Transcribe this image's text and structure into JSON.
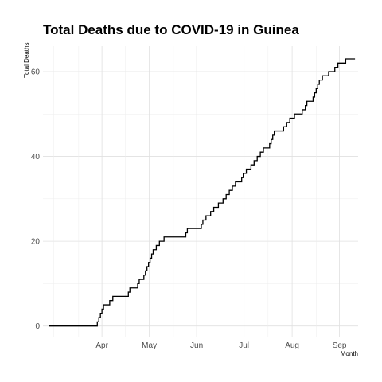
{
  "chart_data": {
    "type": "line",
    "title": "Total Deaths due to COVID-19 in Guinea",
    "xlabel": "Month",
    "ylabel": "Total Deaths",
    "x_ticks": [
      "Apr",
      "May",
      "Jun",
      "Jul",
      "Aug",
      "Sep"
    ],
    "y_ticks": [
      0,
      20,
      40,
      60
    ],
    "ylim": [
      -2.5,
      66
    ],
    "xlim": [
      "2020-03-09",
      "2020-09-28"
    ],
    "grid": true,
    "legend": "none",
    "line_color": "#000000",
    "series": [
      {
        "x": [
          "2020-03-13",
          "2020-04-12",
          "2020-04-13",
          "2020-04-14",
          "2020-04-15",
          "2020-04-16",
          "2020-04-17",
          "2020-04-19",
          "2020-04-21",
          "2020-04-22",
          "2020-04-23",
          "2020-05-02",
          "2020-05-03",
          "2020-05-04",
          "2020-05-09",
          "2020-05-10",
          "2020-05-11",
          "2020-05-12",
          "2020-05-13",
          "2020-05-14",
          "2020-05-15",
          "2020-05-16",
          "2020-05-17",
          "2020-05-18",
          "2020-05-19",
          "2020-05-21",
          "2020-05-22",
          "2020-05-23",
          "2020-05-24",
          "2020-05-25",
          "2020-05-26",
          "2020-06-09",
          "2020-06-10",
          "2020-06-11",
          "2020-06-13",
          "2020-06-15",
          "2020-06-17",
          "2020-06-19",
          "2020-06-20",
          "2020-06-22",
          "2020-06-23",
          "2020-06-25",
          "2020-06-27",
          "2020-06-30",
          "2020-07-03",
          "2020-07-05",
          "2020-07-07",
          "2020-07-09",
          "2020-07-11",
          "2020-07-13",
          "2020-07-15",
          "2020-07-16",
          "2020-07-18",
          "2020-07-20",
          "2020-07-21",
          "2020-07-23",
          "2020-07-25",
          "2020-07-27",
          "2020-07-29",
          "2020-08-02",
          "2020-08-03",
          "2020-08-04",
          "2020-08-05",
          "2020-08-09",
          "2020-08-11",
          "2020-08-13",
          "2020-08-15",
          "2020-08-17",
          "2020-08-18",
          "2020-08-19",
          "2020-08-20",
          "2020-08-21",
          "2020-08-23",
          "2020-08-25",
          "2020-08-26",
          "2020-08-28",
          "2020-08-30",
          "2020-08-31",
          "2020-09-01",
          "2020-09-02",
          "2020-09-03",
          "2020-09-04",
          "2020-09-05",
          "2020-09-06",
          "2020-09-09",
          "2020-09-13",
          "2020-09-15",
          "2020-09-19",
          "2020-09-20",
          "2020-09-26"
        ],
        "y": [
          0,
          0,
          1,
          2,
          3,
          4,
          5,
          5,
          6,
          6,
          7,
          7,
          8,
          9,
          10,
          11,
          11,
          11,
          12,
          13,
          14,
          15,
          16,
          17,
          18,
          19,
          19,
          20,
          20,
          20,
          21,
          22,
          23,
          23,
          23,
          23,
          23,
          24,
          25,
          26,
          26,
          27,
          28,
          29,
          30,
          31,
          32,
          33,
          34,
          34,
          35,
          36,
          37,
          37,
          38,
          39,
          40,
          41,
          42,
          43,
          44,
          45,
          46,
          46,
          47,
          48,
          49,
          49,
          50,
          50,
          50,
          50,
          51,
          52,
          53,
          53,
          54,
          55,
          56,
          57,
          58,
          58,
          59,
          59,
          60,
          61,
          62,
          62,
          63,
          63
        ]
      }
    ]
  }
}
